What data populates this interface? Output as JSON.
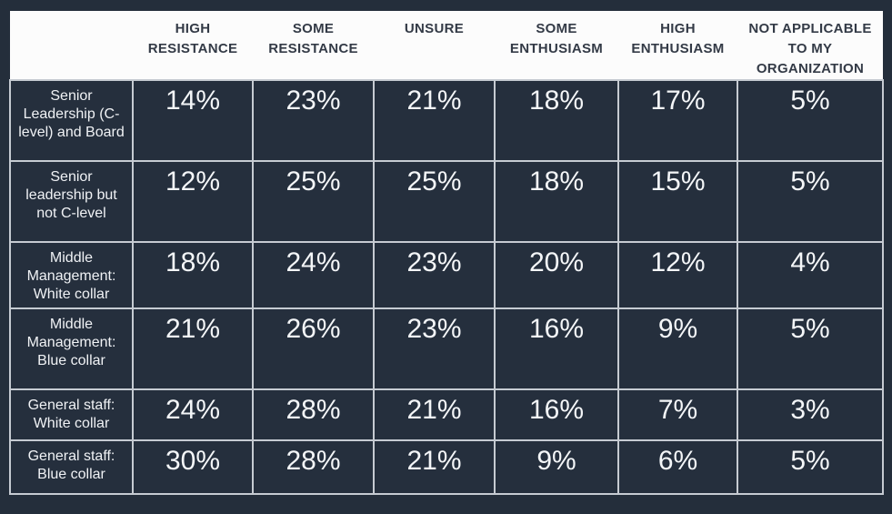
{
  "chart_data": {
    "type": "table",
    "columns": [
      "",
      "HIGH RESISTANCE",
      "SOME RESISTANCE",
      "UNSURE",
      "SOME ENTHUSIASM",
      "HIGH ENTHUSIASM",
      "NOT APPLICABLE TO MY ORGANIZATION"
    ],
    "rows": [
      {
        "label": "Senior Leadership (C-level) and Board",
        "values": [
          "14%",
          "23%",
          "21%",
          "18%",
          "17%",
          "5%"
        ]
      },
      {
        "label": "Senior leadership but not C-level",
        "values": [
          "12%",
          "25%",
          "25%",
          "18%",
          "15%",
          "5%"
        ]
      },
      {
        "label": "Middle Management: White collar",
        "values": [
          "18%",
          "24%",
          "23%",
          "20%",
          "12%",
          "4%"
        ]
      },
      {
        "label": "Middle Management: Blue collar",
        "values": [
          "21%",
          "26%",
          "23%",
          "16%",
          "9%",
          "5%"
        ]
      },
      {
        "label": "General staff: White collar",
        "values": [
          "24%",
          "28%",
          "21%",
          "16%",
          "7%",
          "3%"
        ]
      },
      {
        "label": "General staff: Blue collar",
        "values": [
          "30%",
          "28%",
          "21%",
          "9%",
          "6%",
          "5%"
        ]
      }
    ],
    "layout": {
      "legend": "none",
      "grid": "on",
      "header_position": "top"
    }
  },
  "colors": {
    "page_background": "#242e3b",
    "header_background": "#fcfcfc",
    "header_text": "#333a46",
    "cell_background": "#252f3d",
    "cell_text": "#f4f6f8",
    "row_label_text": "#f0f2f5",
    "grid_line": "#c6cbd2"
  }
}
